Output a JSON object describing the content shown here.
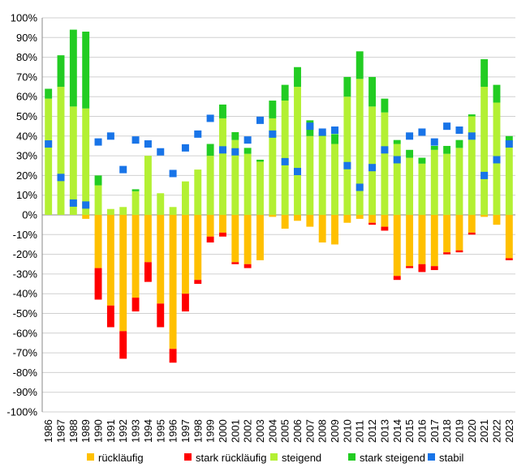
{
  "chart_data": {
    "type": "bar",
    "stacked": true,
    "title": "",
    "xlabel": "",
    "ylabel": "",
    "ylim": [
      -100,
      100
    ],
    "y_ticks": [
      -100,
      -90,
      -80,
      -70,
      -60,
      -50,
      -40,
      -30,
      -20,
      -10,
      0,
      10,
      20,
      30,
      40,
      50,
      60,
      70,
      80,
      90,
      100
    ],
    "y_tick_format": "percent",
    "grid": true,
    "legend_position": "bottom",
    "categories": [
      "1986",
      "1987",
      "1988",
      "1989",
      "1990",
      "1991",
      "1992",
      "1993",
      "1994",
      "1995",
      "1996",
      "1997",
      "1998",
      "1999",
      "2000",
      "2001",
      "2002",
      "2003",
      "2004",
      "2005",
      "2006",
      "2007",
      "2008",
      "2009",
      "2010",
      "2011",
      "2012",
      "2013",
      "2014",
      "2015",
      "2016",
      "2017",
      "2018",
      "2019",
      "2020",
      "2021",
      "2022",
      "2023"
    ],
    "series": [
      {
        "name": "rückläufig",
        "color": "#FFC000",
        "kind": "bar",
        "values": [
          0,
          0,
          0,
          -2,
          -27,
          -46,
          -59,
          -42,
          -24,
          -45,
          -68,
          -40,
          -33,
          -11,
          -9,
          -24,
          -25,
          -23,
          -1,
          -7,
          -3,
          -6,
          -14,
          -15,
          -4,
          -2,
          -4,
          -6,
          -31,
          -26,
          -25,
          -26,
          -19,
          -18,
          -9,
          -1,
          -5,
          -22
        ]
      },
      {
        "name": "stark rückläufig",
        "color": "#FF0000",
        "kind": "bar",
        "values": [
          0,
          0,
          0,
          0,
          -16,
          -11,
          -14,
          -7,
          -10,
          -12,
          -7,
          -9,
          -2,
          -3,
          -2,
          -1,
          -2,
          0,
          0,
          0,
          0,
          0,
          0,
          0,
          0,
          0,
          -1,
          -2,
          -2,
          -1,
          -4,
          -2,
          -1,
          -1,
          -1,
          0,
          0,
          -1
        ]
      },
      {
        "name": "steigend",
        "color": "#B3F033",
        "kind": "bar",
        "values": [
          59,
          65,
          55,
          54,
          15,
          3,
          4,
          12,
          30,
          11,
          4,
          17,
          23,
          30,
          49,
          38,
          31,
          27,
          49,
          58,
          65,
          40,
          40,
          36,
          60,
          69,
          55,
          52,
          36,
          29,
          26,
          33,
          31,
          34,
          50,
          65,
          57,
          37
        ]
      },
      {
        "name": "stark steigend",
        "color": "#22CC22",
        "kind": "bar",
        "values": [
          5,
          16,
          39,
          39,
          5,
          0,
          0,
          1,
          0,
          0,
          0,
          0,
          0,
          6,
          7,
          4,
          3,
          1,
          9,
          8,
          10,
          8,
          2,
          5,
          10,
          14,
          15,
          7,
          2,
          4,
          3,
          2,
          4,
          4,
          1,
          14,
          9,
          3
        ]
      },
      {
        "name": "stabil",
        "color": "#1874E8",
        "kind": "marker",
        "values": [
          36,
          19,
          6,
          5,
          37,
          40,
          23,
          38,
          36,
          32,
          21,
          34,
          41,
          49,
          33,
          32,
          38,
          48,
          41,
          27,
          22,
          45,
          42,
          43,
          25,
          14,
          24,
          33,
          28,
          40,
          42,
          37,
          45,
          43,
          40,
          20,
          28,
          36
        ]
      }
    ]
  }
}
